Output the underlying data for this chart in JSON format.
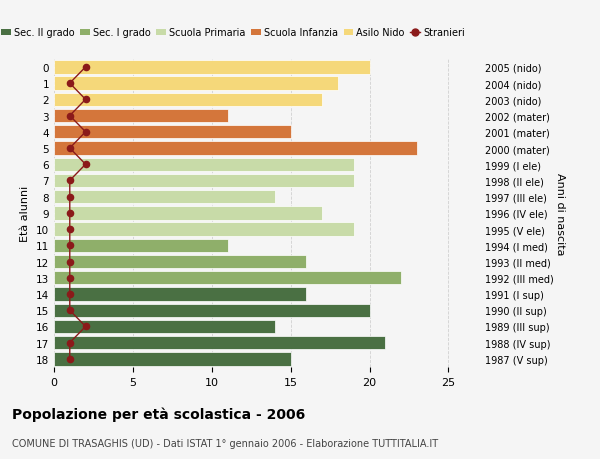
{
  "ages": [
    18,
    17,
    16,
    15,
    14,
    13,
    12,
    11,
    10,
    9,
    8,
    7,
    6,
    5,
    4,
    3,
    2,
    1,
    0
  ],
  "right_labels": [
    "1987 (V sup)",
    "1988 (IV sup)",
    "1989 (III sup)",
    "1990 (II sup)",
    "1991 (I sup)",
    "1992 (III med)",
    "1993 (II med)",
    "1994 (I med)",
    "1995 (V ele)",
    "1996 (IV ele)",
    "1997 (III ele)",
    "1998 (II ele)",
    "1999 (I ele)",
    "2000 (mater)",
    "2001 (mater)",
    "2002 (mater)",
    "2003 (nido)",
    "2004 (nido)",
    "2005 (nido)"
  ],
  "bar_values": [
    15,
    21,
    14,
    20,
    16,
    22,
    16,
    11,
    19,
    17,
    14,
    19,
    19,
    23,
    15,
    11,
    17,
    18,
    20
  ],
  "bar_colors": [
    "#4a7043",
    "#4a7043",
    "#4a7043",
    "#4a7043",
    "#4a7043",
    "#8faf6a",
    "#8faf6a",
    "#8faf6a",
    "#c8dba8",
    "#c8dba8",
    "#c8dba8",
    "#c8dba8",
    "#c8dba8",
    "#d4763b",
    "#d4763b",
    "#d4763b",
    "#f5d87a",
    "#f5d87a",
    "#f5d87a"
  ],
  "stranieri_values": [
    1,
    1,
    2,
    1,
    1,
    1,
    1,
    1,
    1,
    1,
    1,
    1,
    2,
    1,
    2,
    1,
    2,
    1,
    2
  ],
  "stranieri_color": "#8b1a1a",
  "legend_labels": [
    "Sec. II grado",
    "Sec. I grado",
    "Scuola Primaria",
    "Scuola Infanzia",
    "Asilo Nido",
    "Stranieri"
  ],
  "legend_colors": [
    "#4a7043",
    "#8faf6a",
    "#c8dba8",
    "#d4763b",
    "#f5d87a",
    "#8b1a1a"
  ],
  "title": "Popolazione per età scolastica - 2006",
  "subtitle": "COMUNE DI TRASAGHIS (UD) - Dati ISTAT 1° gennaio 2006 - Elaborazione TUTTITALIA.IT",
  "ylabel_left": "Età alunni",
  "ylabel_right": "Anni di nascita",
  "xlim": [
    0,
    27
  ],
  "bg_color": "#f5f5f5",
  "grid_color": "#d0d0d0"
}
